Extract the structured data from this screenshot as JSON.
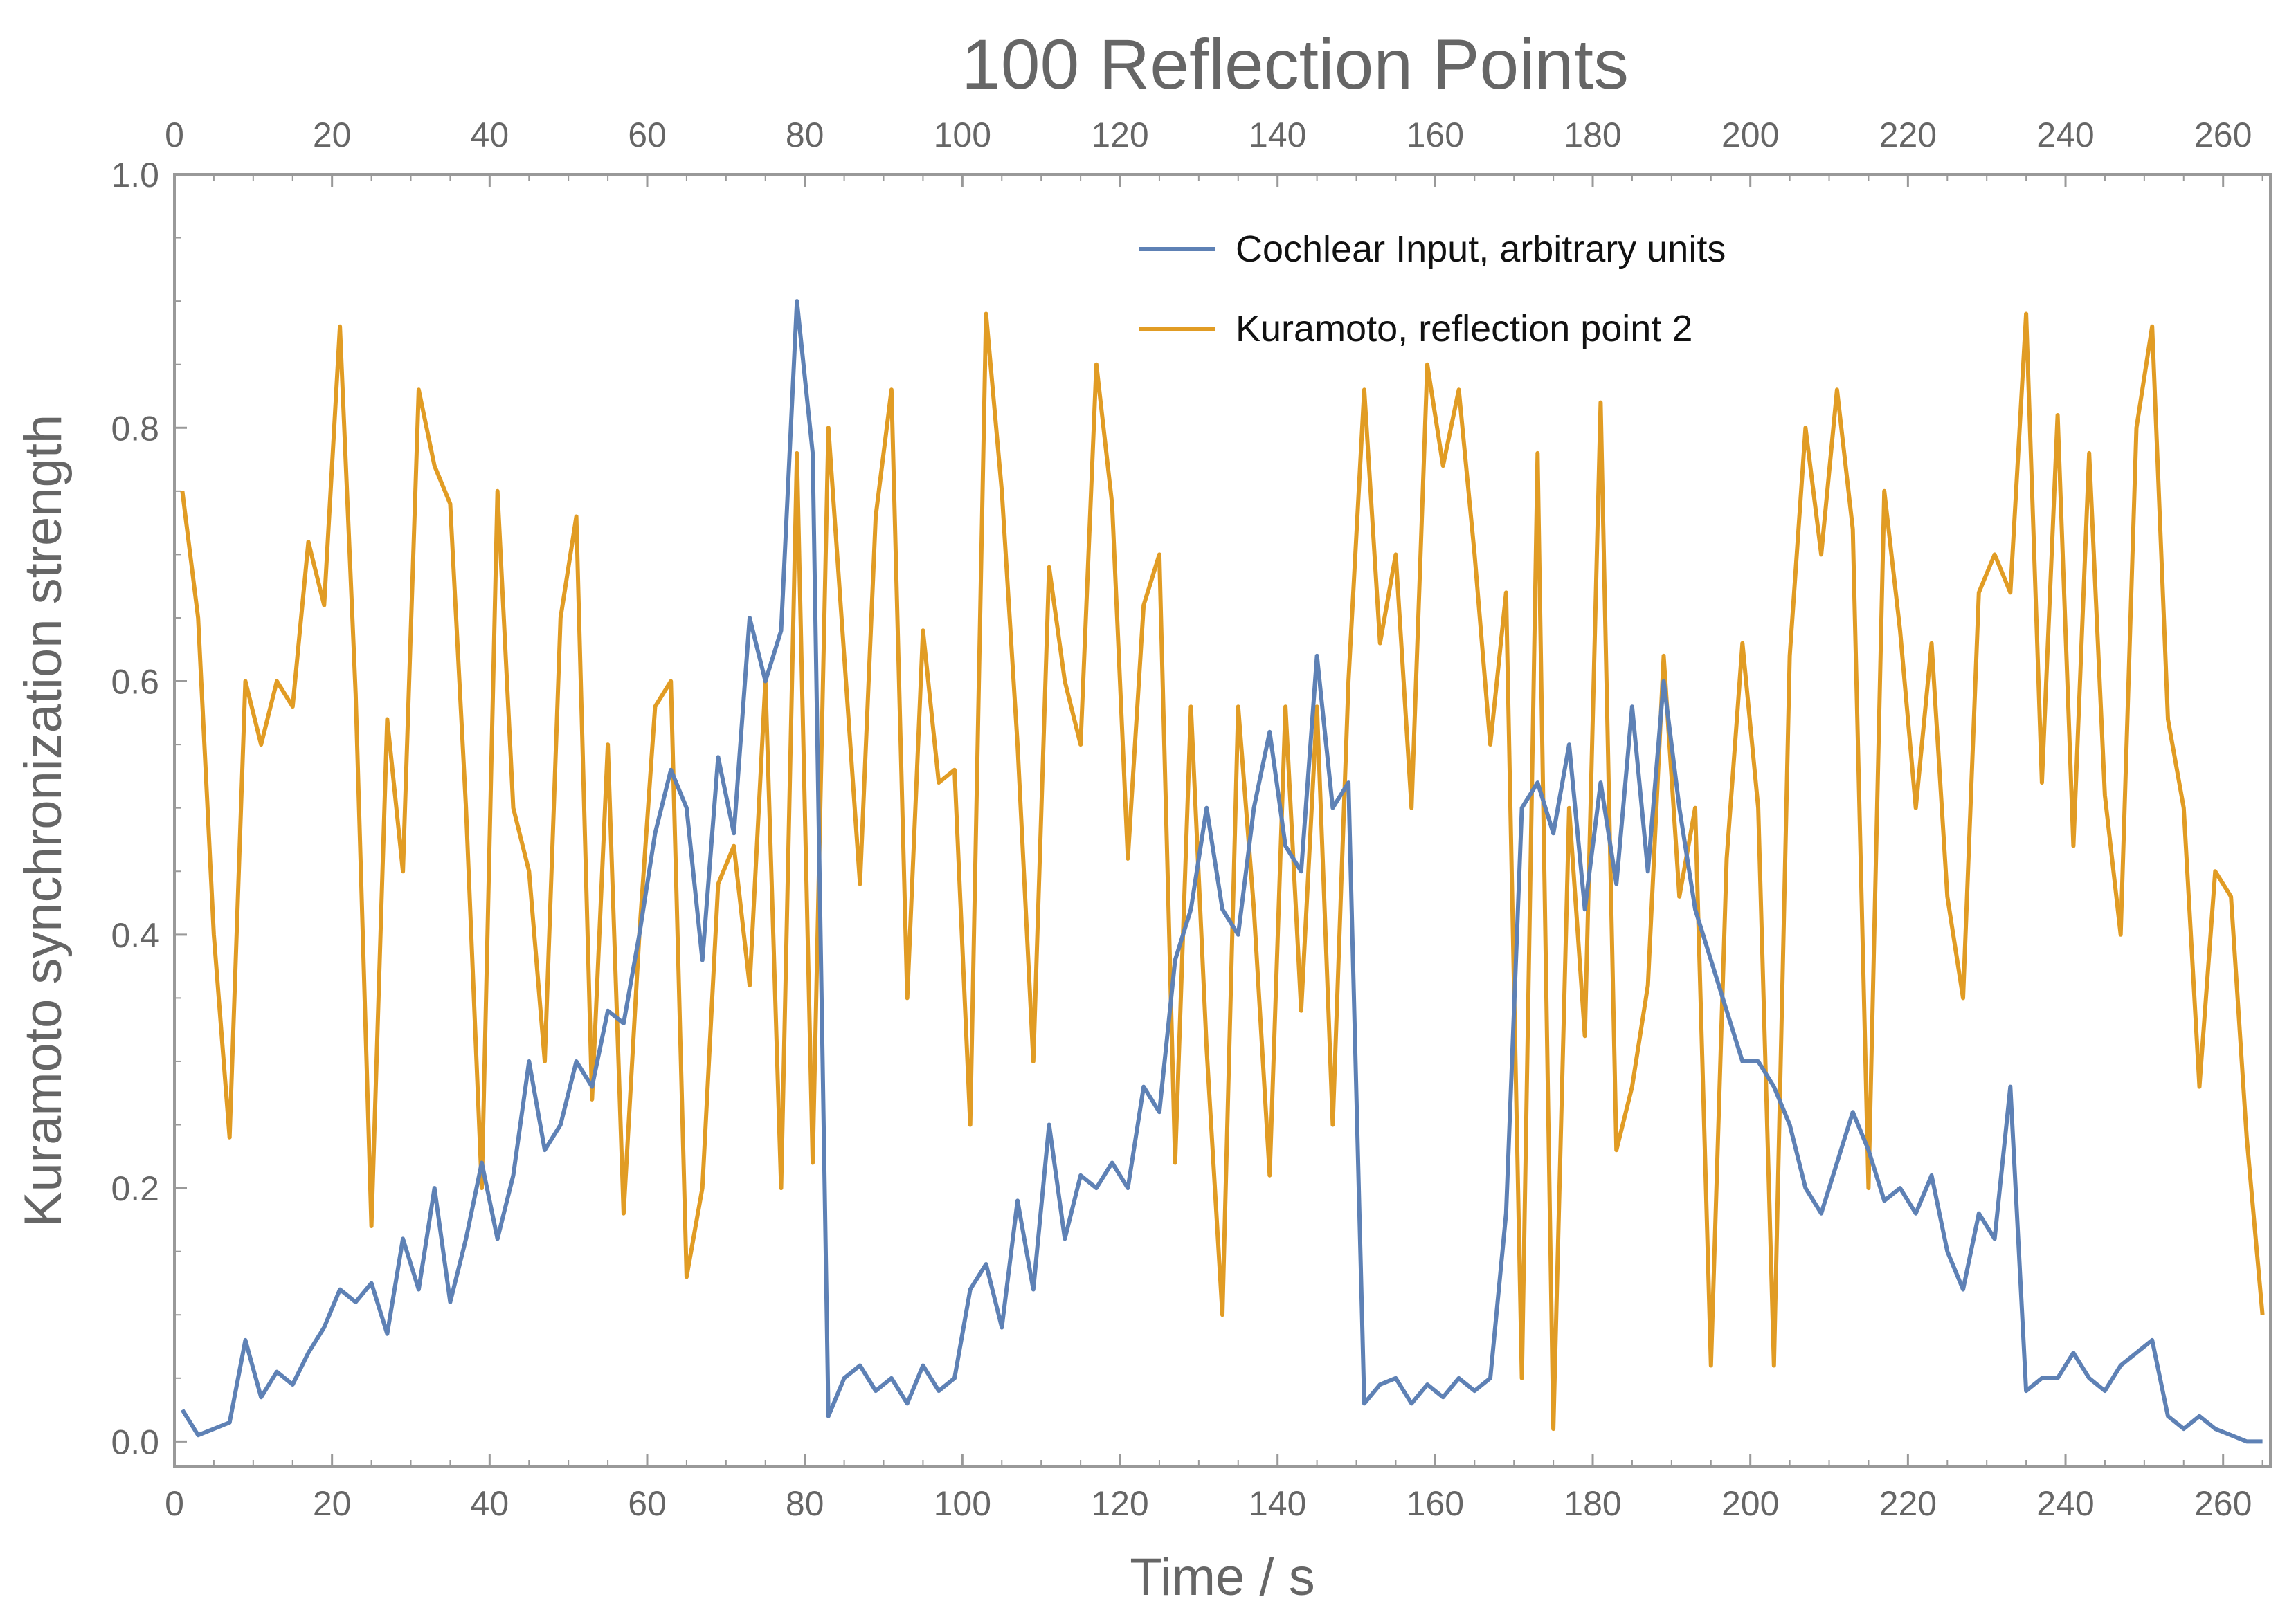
{
  "chart_data": {
    "type": "line",
    "title": "100 Reflection Points",
    "xlabel": "Time / s",
    "ylabel": "Kuramoto synchronization strength",
    "xlim": [
      0,
      266
    ],
    "ylim": [
      -0.02,
      1.0
    ],
    "x_ticks": [
      0,
      20,
      40,
      60,
      80,
      100,
      120,
      140,
      160,
      180,
      200,
      220,
      240,
      260
    ],
    "y_ticks": [
      0.0,
      0.2,
      0.4,
      0.6,
      0.8,
      1.0
    ],
    "y_tick_labels": [
      "0.0",
      "0.2",
      "0.4",
      "0.6",
      "0.8",
      "1.0"
    ],
    "legend_position": "top-right",
    "grid": false,
    "series": [
      {
        "name": "Cochlear Input, arbitrary units",
        "color": "#5e81b5",
        "x": [
          1,
          3,
          5,
          7,
          9,
          11,
          13,
          15,
          17,
          19,
          21,
          23,
          25,
          27,
          29,
          31,
          33,
          35,
          37,
          39,
          41,
          43,
          45,
          47,
          49,
          51,
          53,
          55,
          57,
          59,
          61,
          63,
          65,
          67,
          69,
          71,
          73,
          75,
          77,
          79,
          81,
          83,
          85,
          87,
          89,
          91,
          93,
          95,
          97,
          99,
          101,
          103,
          105,
          107,
          109,
          111,
          113,
          115,
          117,
          119,
          121,
          123,
          125,
          127,
          129,
          131,
          133,
          135,
          137,
          139,
          141,
          143,
          145,
          147,
          149,
          151,
          153,
          155,
          157,
          159,
          161,
          163,
          165,
          167,
          169,
          171,
          173,
          175,
          177,
          179,
          181,
          183,
          185,
          187,
          189,
          191,
          193,
          195,
          197,
          199,
          201,
          203,
          205,
          207,
          209,
          211,
          213,
          215,
          217,
          219,
          221,
          223,
          225,
          227,
          229,
          231,
          233,
          235,
          237,
          239,
          241,
          243,
          245,
          247,
          249,
          251,
          253,
          255,
          257,
          259,
          261,
          263,
          265
        ],
        "values": [
          0.025,
          0.005,
          0.01,
          0.015,
          0.08,
          0.035,
          0.055,
          0.045,
          0.07,
          0.09,
          0.12,
          0.11,
          0.125,
          0.085,
          0.16,
          0.12,
          0.2,
          0.11,
          0.16,
          0.22,
          0.16,
          0.21,
          0.3,
          0.23,
          0.25,
          0.3,
          0.28,
          0.34,
          0.33,
          0.4,
          0.48,
          0.53,
          0.5,
          0.38,
          0.54,
          0.48,
          0.65,
          0.6,
          0.64,
          0.9,
          0.78,
          0.02,
          0.05,
          0.06,
          0.04,
          0.05,
          0.03,
          0.06,
          0.04,
          0.05,
          0.12,
          0.14,
          0.09,
          0.19,
          0.12,
          0.25,
          0.16,
          0.21,
          0.2,
          0.22,
          0.2,
          0.28,
          0.26,
          0.38,
          0.42,
          0.5,
          0.42,
          0.4,
          0.5,
          0.56,
          0.47,
          0.45,
          0.62,
          0.5,
          0.52,
          0.03,
          0.045,
          0.05,
          0.03,
          0.045,
          0.035,
          0.05,
          0.04,
          0.05,
          0.18,
          0.5,
          0.52,
          0.48,
          0.55,
          0.42,
          0.52,
          0.44,
          0.58,
          0.45,
          0.6,
          0.5,
          0.42,
          0.38,
          0.34,
          0.3,
          0.3,
          0.28,
          0.25,
          0.2,
          0.18,
          0.22,
          0.26,
          0.23,
          0.19,
          0.2,
          0.18,
          0.21,
          0.15,
          0.12,
          0.18,
          0.16,
          0.28,
          0.04,
          0.05,
          0.05,
          0.07,
          0.05,
          0.04,
          0.06,
          0.07,
          0.08,
          0.02,
          0.01,
          0.02,
          0.01,
          0.005,
          0.0,
          0.0
        ]
      },
      {
        "name": "Kuramoto, reflection point 2",
        "color": "#e19c24",
        "x": [
          1,
          3,
          5,
          7,
          9,
          11,
          13,
          15,
          17,
          19,
          21,
          23,
          25,
          27,
          29,
          31,
          33,
          35,
          37,
          39,
          41,
          43,
          45,
          47,
          49,
          51,
          53,
          55,
          57,
          59,
          61,
          63,
          65,
          67,
          69,
          71,
          73,
          75,
          77,
          79,
          81,
          83,
          85,
          87,
          89,
          91,
          93,
          95,
          97,
          99,
          101,
          103,
          105,
          107,
          109,
          111,
          113,
          115,
          117,
          119,
          121,
          123,
          125,
          127,
          129,
          131,
          133,
          135,
          137,
          139,
          141,
          143,
          145,
          147,
          149,
          151,
          153,
          155,
          157,
          159,
          161,
          163,
          165,
          167,
          169,
          171,
          173,
          175,
          177,
          179,
          181,
          183,
          185,
          187,
          189,
          191,
          193,
          195,
          197,
          199,
          201,
          203,
          205,
          207,
          209,
          211,
          213,
          215,
          217,
          219,
          221,
          223,
          225,
          227,
          229,
          231,
          233,
          235,
          237,
          239,
          241,
          243,
          245,
          247,
          249,
          251,
          253,
          255,
          257,
          259,
          261,
          263,
          265
        ],
        "values": [
          0.75,
          0.65,
          0.4,
          0.24,
          0.6,
          0.55,
          0.6,
          0.58,
          0.71,
          0.66,
          0.88,
          0.59,
          0.17,
          0.57,
          0.45,
          0.83,
          0.77,
          0.74,
          0.5,
          0.2,
          0.75,
          0.5,
          0.45,
          0.3,
          0.65,
          0.73,
          0.27,
          0.55,
          0.18,
          0.4,
          0.58,
          0.6,
          0.13,
          0.2,
          0.44,
          0.47,
          0.36,
          0.6,
          0.2,
          0.78,
          0.22,
          0.8,
          0.62,
          0.44,
          0.73,
          0.83,
          0.35,
          0.64,
          0.52,
          0.53,
          0.25,
          0.89,
          0.75,
          0.55,
          0.3,
          0.69,
          0.6,
          0.55,
          0.85,
          0.74,
          0.46,
          0.66,
          0.7,
          0.22,
          0.58,
          0.31,
          0.1,
          0.58,
          0.42,
          0.21,
          0.58,
          0.34,
          0.58,
          0.25,
          0.6,
          0.83,
          0.63,
          0.7,
          0.5,
          0.85,
          0.77,
          0.83,
          0.7,
          0.55,
          0.67,
          0.05,
          0.78,
          0.01,
          0.5,
          0.32,
          0.82,
          0.23,
          0.28,
          0.36,
          0.62,
          0.43,
          0.5,
          0.06,
          0.46,
          0.63,
          0.5,
          0.06,
          0.62,
          0.8,
          0.7,
          0.83,
          0.72,
          0.2,
          0.75,
          0.64,
          0.5,
          0.63,
          0.43,
          0.35,
          0.67,
          0.7,
          0.67,
          0.89,
          0.52,
          0.81,
          0.47,
          0.78,
          0.51,
          0.4,
          0.8,
          0.88,
          0.57,
          0.5,
          0.28,
          0.45,
          0.43,
          0.24,
          0.1
        ]
      }
    ]
  }
}
